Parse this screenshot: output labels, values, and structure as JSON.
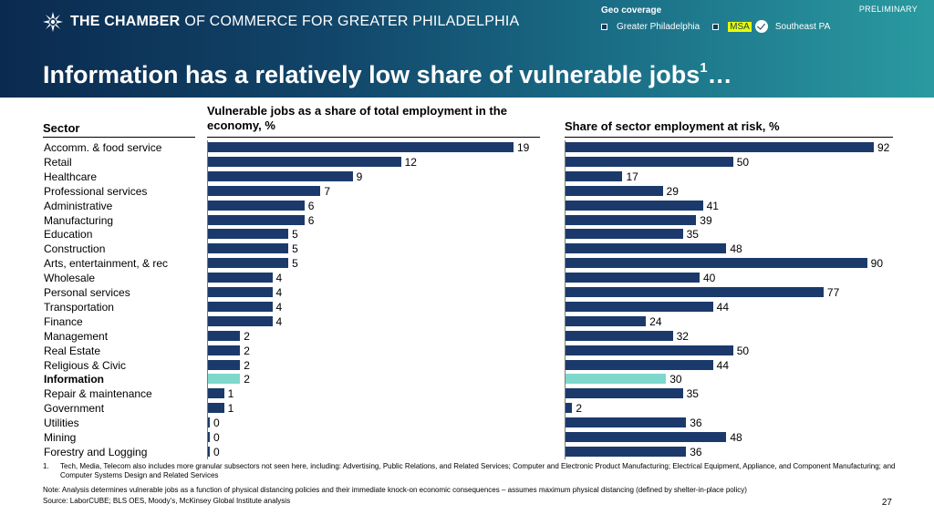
{
  "header": {
    "org_bold": "THE CHAMBER",
    "org_rest": "OF COMMERCE FOR GREATER PHILADELPHIA",
    "title": "Information has a relatively low share of vulnerable jobs",
    "title_sup": "1",
    "title_tail": "…",
    "preliminary": "PRELIMINARY",
    "geo_coverage": {
      "title": "Geo coverage",
      "options": [
        "Greater Philadelphia",
        "MSA",
        "Southeast PA"
      ],
      "selected": "MSA"
    },
    "colors": {
      "band_left": "#0b2a4f",
      "band_right": "#2a9aa0",
      "msa_highlight": "#e6ff00"
    }
  },
  "columns": {
    "sector": "Sector",
    "left": "Vulnerable jobs as a share of total employment in the economy, %",
    "right": "Share of sector employment at risk, %"
  },
  "chart_data": {
    "type": "bar",
    "orientation": "horizontal",
    "categories": [
      "Accomm. & food service",
      "Retail",
      "Healthcare",
      "Professional services",
      "Administrative",
      "Manufacturing",
      "Education",
      "Construction",
      "Arts, entertainment, & rec",
      "Wholesale",
      "Personal services",
      "Transportation",
      "Finance",
      "Management",
      "Real Estate",
      "Religious & Civic",
      "Information",
      "Repair & maintenance",
      "Government",
      "Utilities",
      "Mining",
      "Forestry and Logging"
    ],
    "highlight": "Information",
    "series": [
      {
        "values": [
          19,
          12,
          9,
          7,
          6,
          6,
          5,
          5,
          5,
          4,
          4,
          4,
          4,
          2,
          2,
          2,
          2,
          1,
          1,
          0,
          0,
          0
        ]
      },
      {
        "values": [
          92,
          50,
          17,
          29,
          41,
          39,
          35,
          48,
          90,
          40,
          77,
          44,
          24,
          32,
          50,
          44,
          30,
          35,
          2,
          36,
          48,
          36
        ]
      }
    ],
    "xlim": [
      [
        0,
        19
      ],
      [
        0,
        92
      ]
    ],
    "colors": {
      "bar": "#1b3a6b",
      "highlight": "#7fd8cc"
    }
  },
  "footer": {
    "footnote_num": "1.",
    "footnote": "Tech, Media, Telecom also includes more granular subsectors not seen here, including: Advertising, Public Relations, and Related Services; Computer and Electronic Product Manufacturing; Electrical Equipment, Appliance, and Component Manufacturing; and Computer Systems Design and Related Services",
    "note": "Note: Analysis determines vulnerable jobs as a function of physical distancing policies and their immediate knock-on economic consequences – assumes maximum physical distancing (defined by shelter-in-place policy)",
    "source": "Source: LaborCUBE; BLS OES, Moody’s, McKinsey Global Institute analysis",
    "page": "27"
  }
}
